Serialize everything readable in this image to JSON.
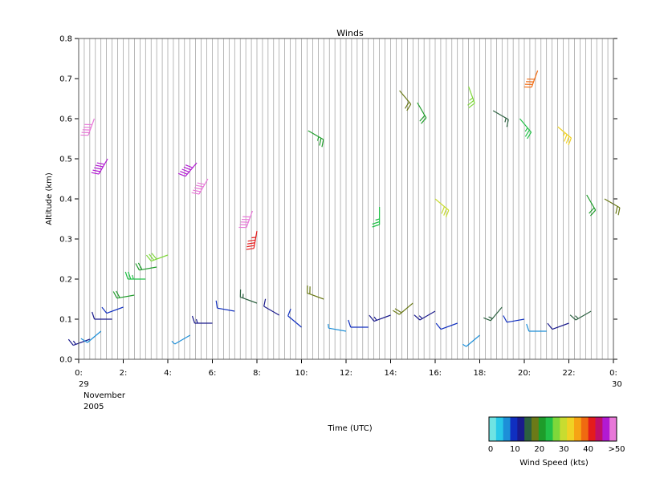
{
  "chart_data": {
    "type": "wind-barb",
    "title": "Winds",
    "xlabel": "Time (UTC)",
    "ylabel": "Altitude (km)",
    "date_labels": [
      "29",
      "November",
      "2005",
      "30"
    ],
    "xlim_hours": [
      0,
      24
    ],
    "ylim": [
      0,
      0.8
    ],
    "x_ticks": [
      "0:",
      "2:",
      "4:",
      "6:",
      "8:",
      "10:",
      "12:",
      "14:",
      "16:",
      "18:",
      "20:",
      "22:",
      "0:"
    ],
    "y_ticks": [
      "0.0",
      "0.1",
      "0.2",
      "0.3",
      "0.4",
      "0.5",
      "0.6",
      "0.7",
      "0.8"
    ],
    "grid_vertical_lines": true,
    "profile_interval_minutes": 15,
    "colorbar": {
      "label": "Wind Speed (kts)",
      "tick_labels": [
        "0",
        "10",
        "20",
        "30",
        "40",
        ">50"
      ],
      "colors": [
        "#6fe3e3",
        "#29c8e8",
        "#1d8fd8",
        "#102fc0",
        "#1a1a8c",
        "#2c6040",
        "#6b7a18",
        "#1e9c2a",
        "#22c048",
        "#7ed83a",
        "#c8dc30",
        "#f0d224",
        "#f6a414",
        "#f06a10",
        "#e41c1c",
        "#c0106a",
        "#b21ad2",
        "#e878d8"
      ]
    },
    "series": [
      {
        "level": "low",
        "values": [
          [
            0.5,
            0.05,
            14,
            250
          ],
          [
            1.0,
            0.07,
            8,
            230
          ],
          [
            1.5,
            0.1,
            12,
            270
          ],
          [
            2.0,
            0.13,
            9,
            250
          ],
          [
            2.5,
            0.16,
            21,
            260
          ],
          [
            3.0,
            0.2,
            25,
            270
          ],
          [
            3.5,
            0.23,
            22,
            260
          ],
          [
            4.0,
            0.26,
            28,
            250
          ],
          [
            5.0,
            0.06,
            6,
            240
          ],
          [
            6.0,
            0.09,
            13,
            270
          ],
          [
            7.0,
            0.12,
            11,
            280
          ],
          [
            8.0,
            0.14,
            17,
            290
          ],
          [
            9.0,
            0.11,
            12,
            300
          ],
          [
            10.0,
            0.08,
            9,
            310
          ],
          [
            11.0,
            0.15,
            20,
            290
          ],
          [
            12.0,
            0.07,
            7,
            280
          ],
          [
            13.0,
            0.08,
            10,
            270
          ],
          [
            14.0,
            0.11,
            13,
            250
          ],
          [
            15.0,
            0.14,
            18,
            230
          ],
          [
            16.0,
            0.12,
            14,
            240
          ],
          [
            17.0,
            0.09,
            9,
            250
          ],
          [
            18.0,
            0.06,
            6,
            230
          ],
          [
            19.0,
            0.13,
            16,
            220
          ],
          [
            20.0,
            0.1,
            11,
            260
          ],
          [
            21.0,
            0.07,
            8,
            270
          ],
          [
            22.0,
            0.09,
            12,
            250
          ],
          [
            23.0,
            0.12,
            15,
            240
          ]
        ]
      },
      {
        "level": "high",
        "values": [
          [
            0.7,
            0.6,
            52,
            200
          ],
          [
            1.3,
            0.5,
            48,
            210
          ],
          [
            5.3,
            0.49,
            49,
            220
          ],
          [
            5.8,
            0.45,
            51,
            210
          ],
          [
            7.8,
            0.37,
            50,
            200
          ],
          [
            8.0,
            0.32,
            44,
            190
          ],
          [
            10.3,
            0.57,
            23,
            120
          ],
          [
            13.5,
            0.38,
            25,
            180
          ],
          [
            14.4,
            0.67,
            18,
            140
          ],
          [
            15.2,
            0.64,
            22,
            150
          ],
          [
            16.0,
            0.4,
            31,
            130
          ],
          [
            17.5,
            0.68,
            27,
            160
          ],
          [
            18.6,
            0.62,
            15,
            120
          ],
          [
            19.8,
            0.6,
            24,
            140
          ],
          [
            20.6,
            0.72,
            40,
            200
          ],
          [
            21.5,
            0.58,
            33,
            130
          ],
          [
            22.8,
            0.41,
            21,
            150
          ],
          [
            23.6,
            0.4,
            19,
            120
          ]
        ]
      }
    ]
  }
}
